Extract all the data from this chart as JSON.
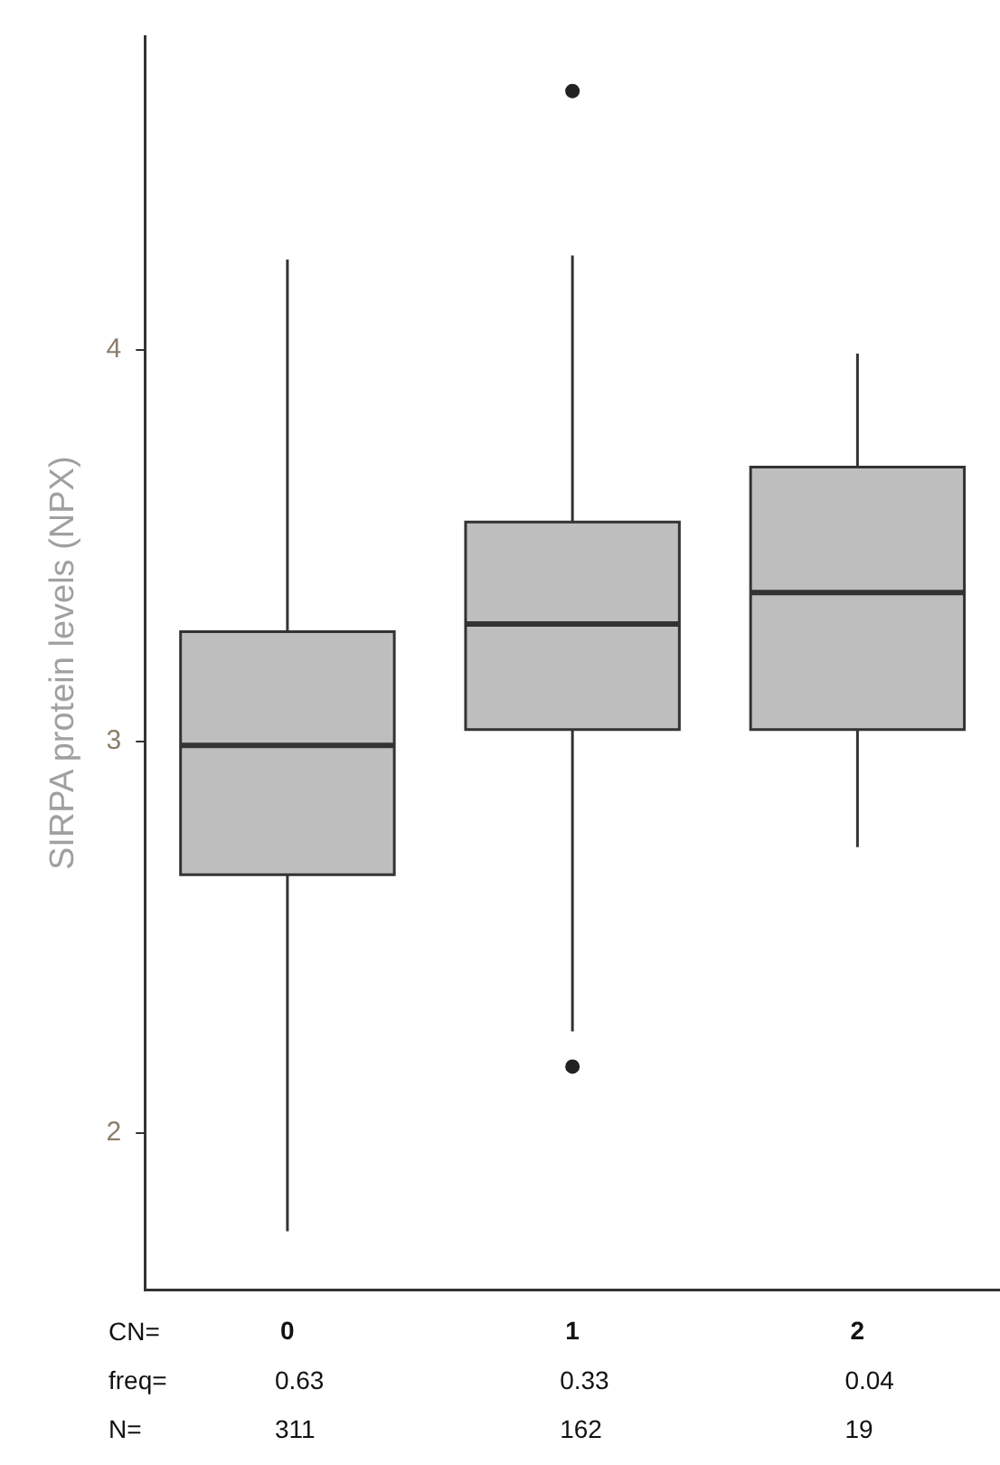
{
  "chart_data": {
    "type": "box",
    "ylabel": "SIRPA protein levels (NPX)",
    "categories": [
      "0",
      "1",
      "2"
    ],
    "color": "#bebebe",
    "boxes": [
      {
        "low": 1.75,
        "q1": 2.66,
        "median": 2.99,
        "q3": 3.28,
        "high": 4.23
      },
      {
        "low": 2.26,
        "q1": 3.03,
        "median": 3.3,
        "q3": 3.56,
        "high": 4.24,
        "outliers": [
          4.66,
          2.17
        ]
      },
      {
        "low": 2.73,
        "q1": 3.03,
        "median": 3.38,
        "q3": 3.7,
        "high": 3.99
      }
    ],
    "ylim": [
      1.6,
      4.8
    ],
    "yticks": [
      2,
      3,
      4
    ],
    "annotations": [
      "CN=",
      "freq=",
      "N=",
      "0.63",
      "0.33",
      "0.04",
      "311",
      "162",
      "19"
    ]
  }
}
